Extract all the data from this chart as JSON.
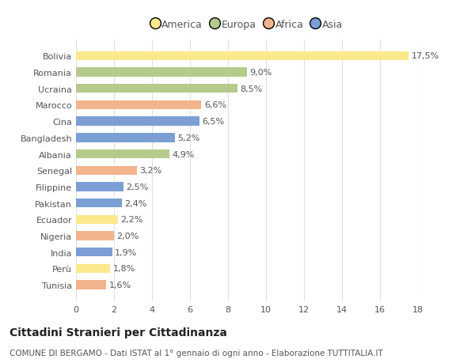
{
  "countries": [
    "Tunisia",
    "Perù",
    "India",
    "Nigeria",
    "Ecuador",
    "Pakistan",
    "Filippine",
    "Senegal",
    "Albania",
    "Bangladesh",
    "Cina",
    "Marocco",
    "Ucraina",
    "Romania",
    "Bolivia"
  ],
  "values": [
    1.6,
    1.8,
    1.9,
    2.0,
    2.2,
    2.4,
    2.5,
    3.2,
    4.9,
    5.2,
    6.5,
    6.6,
    8.5,
    9.0,
    17.5
  ],
  "labels": [
    "1,6%",
    "1,8%",
    "1,9%",
    "2,0%",
    "2,2%",
    "2,4%",
    "2,5%",
    "3,2%",
    "4,9%",
    "5,2%",
    "6,5%",
    "6,6%",
    "8,5%",
    "9,0%",
    "17,5%"
  ],
  "colors": [
    "#f2b48c",
    "#fde98d",
    "#7b9fd4",
    "#f2b48c",
    "#fde98d",
    "#7b9fd4",
    "#7b9fd4",
    "#f2b48c",
    "#b5cb8b",
    "#7b9fd4",
    "#7b9fd4",
    "#f2b48c",
    "#b5cb8b",
    "#b5cb8b",
    "#fde98d"
  ],
  "continent": [
    "Africa",
    "America",
    "Asia",
    "Africa",
    "America",
    "Asia",
    "Asia",
    "Africa",
    "Europa",
    "Asia",
    "Asia",
    "Africa",
    "Europa",
    "Europa",
    "America"
  ],
  "legend_labels": [
    "America",
    "Europa",
    "Africa",
    "Asia"
  ],
  "legend_colors": [
    "#fde98d",
    "#b5cb8b",
    "#f2b48c",
    "#7b9fd4"
  ],
  "title": "Cittadini Stranieri per Cittadinanza",
  "subtitle": "COMUNE DI BERGAMO - Dati ISTAT al 1° gennaio di ogni anno - Elaborazione TUTTITALIA.IT",
  "xlim": [
    0,
    18
  ],
  "xticks": [
    0,
    2,
    4,
    6,
    8,
    10,
    12,
    14,
    16,
    18
  ],
  "plot_bg_color": "#ffffff",
  "fig_bg_color": "#ffffff",
  "grid_color": "#e0e0e0",
  "bar_height": 0.55,
  "label_fontsize": 8.0,
  "tick_fontsize": 8.0,
  "legend_fontsize": 9.0,
  "title_fontsize": 10.0,
  "subtitle_fontsize": 7.5
}
